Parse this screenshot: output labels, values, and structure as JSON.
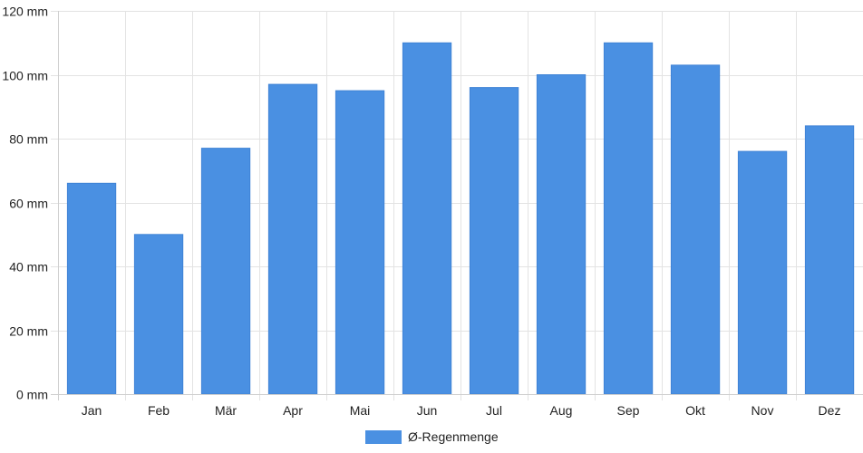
{
  "chart_data": {
    "type": "bar",
    "categories": [
      "Jan",
      "Feb",
      "Mär",
      "Apr",
      "Mai",
      "Jun",
      "Jul",
      "Aug",
      "Sep",
      "Okt",
      "Nov",
      "Dez"
    ],
    "series": [
      {
        "name": "Ø-Regenmenge",
        "color": "#4a90e2",
        "values": [
          66,
          50,
          77,
          97,
          95,
          110,
          96,
          100,
          110,
          103,
          76,
          84
        ]
      }
    ],
    "ylim": [
      0,
      120
    ],
    "yticks": [
      "0 mm",
      "20 mm",
      "40 mm",
      "60 mm",
      "80 mm",
      "100 mm",
      "120 mm"
    ],
    "grid": true,
    "legend_position": "bottom-center"
  }
}
